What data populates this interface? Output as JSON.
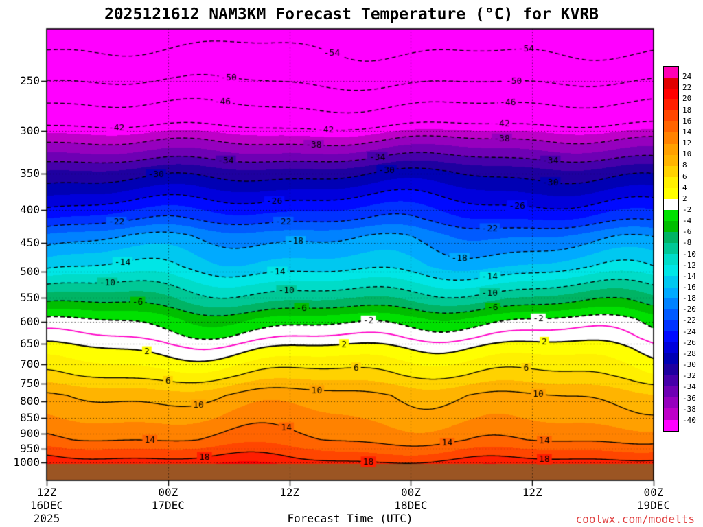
{
  "watermark": "coolwx.com/modelts",
  "chart_data": {
    "type": "heatmap",
    "title": "2025121612 NAM3KM Forecast Temperature (°C) for KVRB",
    "xlabel": "Forecast Time (UTC)",
    "ylabel": "",
    "units": "°C",
    "legend_position": "right",
    "grid": "dotted",
    "t_range": [
      0,
      60
    ],
    "p_range": [
      207,
      1066
    ],
    "surface_pressure": 1005,
    "terrain_color": "#9B5523",
    "y_ticks": [
      250,
      300,
      350,
      400,
      450,
      500,
      550,
      600,
      650,
      700,
      750,
      800,
      850,
      900,
      950,
      1000
    ],
    "x_ticks": [
      {
        "hour": 0,
        "label": "12Z",
        "date": "16DEC",
        "year": "2025"
      },
      {
        "hour": 12,
        "label": "00Z",
        "date": "17DEC"
      },
      {
        "hour": 24,
        "label": "12Z"
      },
      {
        "hour": 36,
        "label": "00Z",
        "date": "18DEC"
      },
      {
        "hour": 48,
        "label": "12Z"
      },
      {
        "hour": 60,
        "label": "00Z",
        "date": "19DEC"
      }
    ],
    "profile": [
      [
        207,
        -56.5
      ],
      [
        246,
        -51
      ],
      [
        267,
        -47
      ],
      [
        290,
        -43
      ],
      [
        306,
        -39
      ],
      [
        327,
        -35
      ],
      [
        347,
        -31
      ],
      [
        378,
        -27
      ],
      [
        412,
        -23
      ],
      [
        438,
        -19
      ],
      [
        490,
        -15
      ],
      [
        524,
        -11
      ],
      [
        561,
        -7
      ],
      [
        593,
        -3
      ],
      [
        635,
        0
      ],
      [
        659,
        2
      ],
      [
        700,
        4.5
      ],
      [
        727,
        6
      ],
      [
        783,
        10
      ],
      [
        850,
        11.8
      ],
      [
        920,
        14
      ],
      [
        985,
        18
      ],
      [
        1005,
        19.5
      ],
      [
        1066,
        21
      ]
    ],
    "colorbar": {
      "levels": [
        -40,
        -38,
        -36,
        -34,
        -32,
        -30,
        -28,
        -26,
        -24,
        -22,
        -20,
        -18,
        -16,
        -14,
        -12,
        -10,
        -8,
        -6,
        -4,
        -2,
        2,
        4,
        6,
        8,
        10,
        12,
        14,
        16,
        18,
        20,
        22,
        24
      ],
      "colors": [
        "#FF00FF",
        "#BE00C8",
        "#9600BE",
        "#6E00B4",
        "#4600AA",
        "#1E00A0",
        "#0000B4",
        "#0000DC",
        "#000AFF",
        "#0032FF",
        "#005AFF",
        "#0082FF",
        "#00AAFF",
        "#00C8F0",
        "#00E6E6",
        "#00DCC8",
        "#00C896",
        "#00B464",
        "#00BE00",
        "#00E100",
        "#FFFFFF",
        "#FFFF00",
        "#FFF000",
        "#FFD200",
        "#FFB400",
        "#FFA000",
        "#FF8200",
        "#FF6400",
        "#FF4600",
        "#FF1E00",
        "#FF0000",
        "#E10000",
        "#FF00B4"
      ]
    },
    "contours": {
      "levels": [
        -54,
        -50,
        -46,
        -42,
        -38,
        -34,
        -30,
        -26,
        -22,
        -18,
        -14,
        -10,
        -6,
        -2,
        0,
        2,
        6,
        10,
        14,
        18
      ],
      "zero_line_color": "#FF00C8",
      "labels": [
        {
          "v": -54,
          "x": [
            0.47,
            0.79
          ]
        },
        {
          "v": -50,
          "x": [
            0.3,
            0.77
          ]
        },
        {
          "v": -46,
          "x": [
            0.29,
            0.76
          ]
        },
        {
          "v": -42,
          "x": [
            0.115,
            0.46,
            0.75
          ]
        },
        {
          "v": -38,
          "x": [
            0.44,
            0.75
          ]
        },
        {
          "v": -34,
          "x": [
            0.295,
            0.545,
            0.83
          ]
        },
        {
          "v": -30,
          "x": [
            0.18,
            0.56,
            0.83
          ]
        },
        {
          "v": -26,
          "x": [
            0.375,
            0.775
          ]
        },
        {
          "v": -22,
          "x": [
            0.115,
            0.39,
            0.73
          ]
        },
        {
          "v": -18,
          "x": [
            0.41,
            0.68
          ]
        },
        {
          "v": -14,
          "x": [
            0.125,
            0.38,
            0.73
          ]
        },
        {
          "v": -10,
          "x": [
            0.1,
            0.395,
            0.73
          ]
        },
        {
          "v": -6,
          "x": [
            0.15,
            0.42,
            0.735
          ]
        },
        {
          "v": -2,
          "x": [
            0.53,
            0.81
          ]
        },
        {
          "v": 2,
          "x": [
            0.165,
            0.49,
            0.82
          ]
        },
        {
          "v": 6,
          "x": [
            0.2,
            0.51,
            0.79
          ]
        },
        {
          "v": 10,
          "x": [
            0.25,
            0.445,
            0.81
          ]
        },
        {
          "v": 14,
          "x": [
            0.17,
            0.395,
            0.66,
            0.82
          ]
        },
        {
          "v": 18,
          "x": [
            0.26,
            0.53,
            0.82
          ]
        }
      ]
    }
  }
}
